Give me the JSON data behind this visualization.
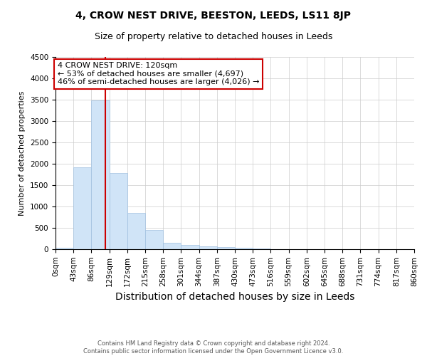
{
  "title": "4, CROW NEST DRIVE, BEESTON, LEEDS, LS11 8JP",
  "subtitle": "Size of property relative to detached houses in Leeds",
  "xlabel": "Distribution of detached houses by size in Leeds",
  "ylabel": "Number of detached properties",
  "footnote1": "Contains HM Land Registry data © Crown copyright and database right 2024.",
  "footnote2": "Contains public sector information licensed under the Open Government Licence v3.0.",
  "bin_edges": [
    0,
    43,
    86,
    129,
    172,
    215,
    258,
    301,
    344,
    387,
    430,
    473,
    516,
    559,
    602,
    645,
    688,
    731,
    774,
    817,
    860
  ],
  "bar_values": [
    40,
    1920,
    3480,
    1780,
    855,
    455,
    155,
    95,
    60,
    45,
    38,
    22,
    0,
    0,
    0,
    0,
    0,
    0,
    0,
    0
  ],
  "bar_color": "#d0e4f7",
  "bar_edge_color": "#a0c0e0",
  "property_size": 120,
  "red_line_color": "#cc0000",
  "annotation_line1": "4 CROW NEST DRIVE: 120sqm",
  "annotation_line2": "← 53% of detached houses are smaller (4,697)",
  "annotation_line3": "46% of semi-detached houses are larger (4,026) →",
  "annotation_box_color": "#cc0000",
  "ylim": [
    0,
    4500
  ],
  "yticks": [
    0,
    500,
    1000,
    1500,
    2000,
    2500,
    3000,
    3500,
    4000,
    4500
  ],
  "background_color": "#ffffff",
  "grid_color": "#cccccc",
  "title_fontsize": 10,
  "subtitle_fontsize": 9,
  "xlabel_fontsize": 10,
  "ylabel_fontsize": 8,
  "tick_fontsize": 7.5,
  "annotation_fontsize": 8
}
